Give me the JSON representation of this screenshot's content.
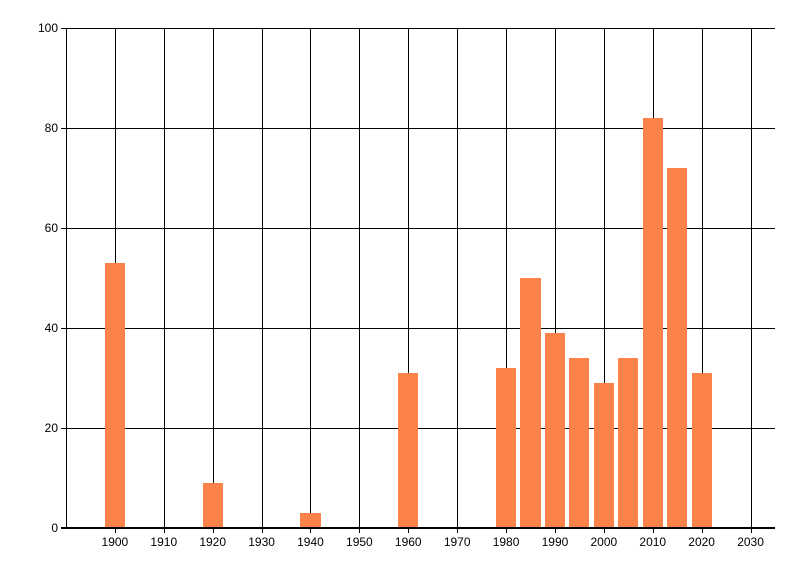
{
  "chart_data": {
    "type": "bar",
    "title": "",
    "xlabel": "",
    "ylabel": "",
    "x": [
      1900,
      1920,
      1940,
      1960,
      1980,
      1985,
      1990,
      1995,
      2000,
      2005,
      2010,
      2015,
      2020
    ],
    "values": [
      53,
      9,
      3,
      31,
      32,
      50,
      39,
      34,
      29,
      34,
      82,
      72,
      31
    ],
    "xticks": [
      1900,
      1910,
      1920,
      1930,
      1940,
      1950,
      1960,
      1970,
      1980,
      1990,
      2000,
      2010,
      2020,
      2030
    ],
    "yticks": [
      0,
      20,
      40,
      60,
      80,
      100
    ],
    "xlim": [
      1890,
      2035
    ],
    "ylim": [
      0,
      100
    ],
    "grid": true,
    "legend": "none",
    "bar_color": "#fb8248",
    "axis_color": "#000000",
    "text_color": "#000000",
    "bar_width_years": 4.1
  }
}
